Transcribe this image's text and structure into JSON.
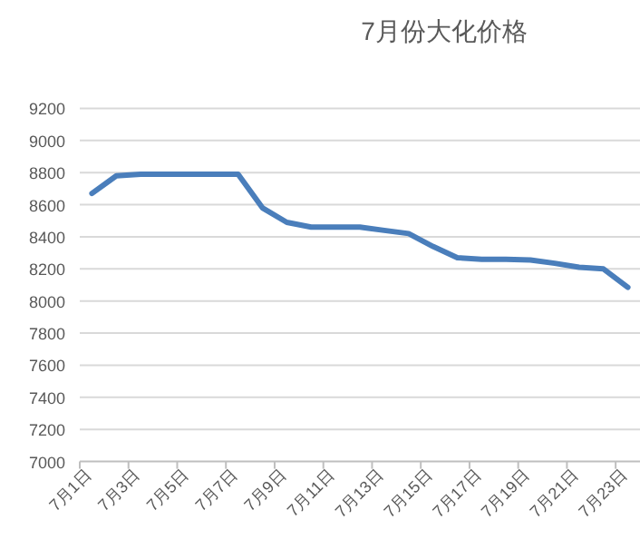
{
  "chart_data": {
    "type": "line",
    "title": "7月份大化价格",
    "categories": [
      "7月1日",
      null,
      "7月3日",
      null,
      "7月5日",
      null,
      "7月7日",
      null,
      "7月9日",
      null,
      "7月11日",
      null,
      "7月13日",
      null,
      "7月15日",
      null,
      "7月17日",
      null,
      "7月19日",
      null,
      "7月21日",
      null,
      "7月23日"
    ],
    "series": [
      {
        "color": "#4a7ebb",
        "values": [
          8670,
          8780,
          8790,
          8790,
          8790,
          8790,
          8790,
          8580,
          8490,
          8460,
          8460,
          8460,
          8440,
          8420,
          8340,
          8270,
          8260,
          8260,
          8255,
          8235,
          8210,
          8200,
          8085
        ]
      }
    ],
    "ylim": [
      7000,
      9200
    ],
    "yticks": [
      7000,
      7200,
      7400,
      7600,
      7800,
      8000,
      8200,
      8400,
      8600,
      8800,
      9000,
      9200
    ],
    "grid": "y"
  }
}
